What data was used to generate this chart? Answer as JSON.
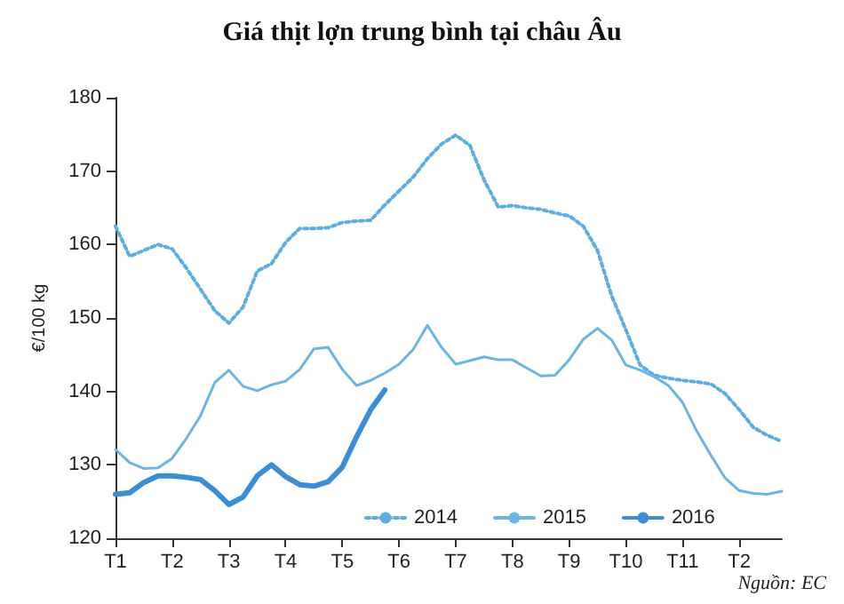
{
  "chart_data": {
    "type": "line",
    "title": "Giá thịt lợn trung bình tại châu Âu",
    "ylabel": "€/100 kg",
    "categories": [
      "T1",
      null,
      null,
      null,
      "T2",
      null,
      null,
      null,
      "T3",
      null,
      null,
      null,
      "T4",
      null,
      null,
      null,
      "T5",
      null,
      null,
      null,
      "T6",
      null,
      null,
      null,
      "T7",
      null,
      null,
      null,
      "T8",
      null,
      null,
      null,
      "T9",
      null,
      null,
      null,
      "T10",
      null,
      null,
      null,
      "T11",
      null,
      null,
      null,
      "T2",
      null,
      null,
      null
    ],
    "ylim": [
      120,
      180
    ],
    "yticks": [
      120,
      130,
      140,
      150,
      160,
      170,
      180
    ],
    "grid": false,
    "legend": "bottom",
    "marker": "none",
    "series": [
      {
        "name": "2014",
        "color": "#5dade2",
        "line_style": "dotted",
        "values": [
          162.5,
          158.4,
          159.2,
          160,
          159.4,
          156.8,
          153.9,
          151,
          149.3,
          151.5,
          156.4,
          157.4,
          160.3,
          162.2,
          162.2,
          162.3,
          163,
          163.2,
          163.3,
          165.4,
          167.3,
          169.2,
          171.7,
          173.7,
          174.9,
          173.5,
          168.8,
          165.1,
          165.3,
          165,
          164.8,
          164.3,
          163.9,
          162.5,
          159.2,
          153,
          148.4,
          143.6,
          142.2,
          141.8,
          141.5,
          141.3,
          141,
          139.7,
          137.5,
          135.1,
          134,
          133.2
        ]
      },
      {
        "name": "2015",
        "color": "#6cb4e4",
        "line_style": "solid",
        "values": [
          132.1,
          130.3,
          129.5,
          129.6,
          130.9,
          133.6,
          136.7,
          141.2,
          142.9,
          140.7,
          140.1,
          140.9,
          141.4,
          143,
          145.8,
          146,
          143,
          140.8,
          141.5,
          142.5,
          143.7,
          145.7,
          149,
          146,
          143.7,
          144.2,
          144.7,
          144.3,
          144.3,
          143.2,
          142.1,
          142.2,
          144.3,
          147.1,
          148.6,
          147,
          143.6,
          142.9,
          142,
          140.8,
          138.5,
          134.6,
          131.3,
          128.2,
          126.5,
          126.1,
          126,
          126.4
        ]
      },
      {
        "name": "2016",
        "color": "#3b8ed4",
        "line_style": "solid",
        "values": [
          126,
          126.2,
          127.6,
          128.5,
          128.5,
          128.3,
          128,
          126.5,
          124.6,
          125.6,
          128.5,
          130,
          128.4,
          127.3,
          127.1,
          127.7,
          129.7,
          133.8,
          137.5,
          140.2,
          null,
          null,
          null,
          null,
          null,
          null,
          null,
          null,
          null,
          null,
          null,
          null,
          null,
          null,
          null,
          null,
          null,
          null,
          null,
          null,
          null,
          null,
          null,
          null,
          null,
          null,
          null,
          null
        ]
      }
    ],
    "annotations": [
      "Nguồn: EC"
    ]
  }
}
